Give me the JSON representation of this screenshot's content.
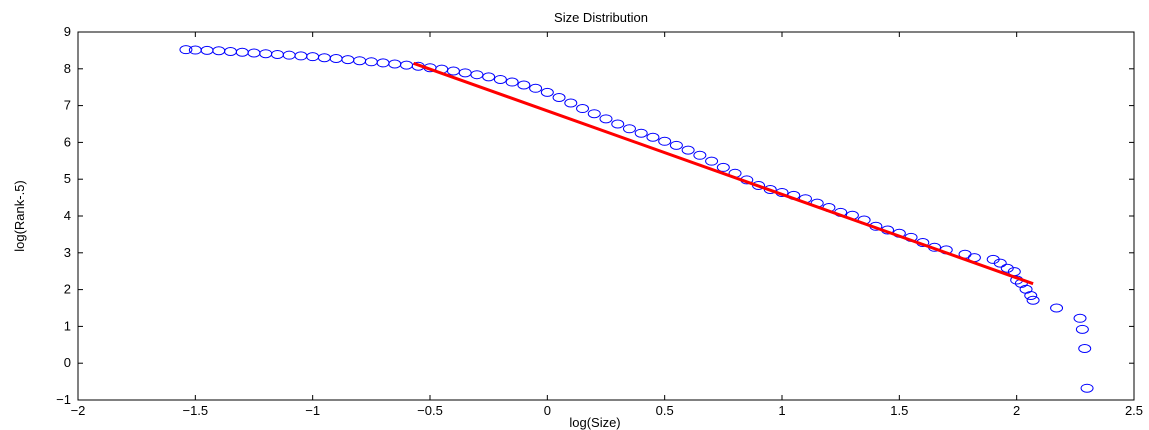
{
  "chart_data": {
    "type": "scatter",
    "title": "Size Distribution",
    "xlabel": "log(Size)",
    "ylabel": "log(Rank-.5)",
    "xlim": [
      -2,
      2.5
    ],
    "ylim": [
      -1,
      9
    ],
    "x_ticks": [
      "−2",
      "−1.5",
      "−1",
      "−0.5",
      "0",
      "0.5",
      "1",
      "1.5",
      "2",
      "2.5"
    ],
    "y_ticks": [
      "−1",
      "0",
      "1",
      "2",
      "3",
      "4",
      "5",
      "6",
      "7",
      "8",
      "9"
    ],
    "grid": false,
    "legend": "none",
    "series": [
      {
        "kind": "scatter",
        "marker": "circle-open",
        "color": "#0000ff",
        "points": [
          [
            -1.54,
            8.52
          ],
          [
            -1.5,
            8.51
          ],
          [
            -1.45,
            8.5
          ],
          [
            -1.4,
            8.49
          ],
          [
            -1.35,
            8.47
          ],
          [
            -1.3,
            8.45
          ],
          [
            -1.25,
            8.43
          ],
          [
            -1.2,
            8.41
          ],
          [
            -1.15,
            8.39
          ],
          [
            -1.1,
            8.37
          ],
          [
            -1.05,
            8.35
          ],
          [
            -1.0,
            8.33
          ],
          [
            -0.95,
            8.3
          ],
          [
            -0.9,
            8.28
          ],
          [
            -0.85,
            8.25
          ],
          [
            -0.8,
            8.22
          ],
          [
            -0.75,
            8.19
          ],
          [
            -0.7,
            8.16
          ],
          [
            -0.65,
            8.13
          ],
          [
            -0.6,
            8.1
          ],
          [
            -0.55,
            8.07
          ],
          [
            -0.5,
            8.03
          ],
          [
            -0.45,
            7.99
          ],
          [
            -0.4,
            7.94
          ],
          [
            -0.35,
            7.89
          ],
          [
            -0.3,
            7.84
          ],
          [
            -0.25,
            7.78
          ],
          [
            -0.2,
            7.71
          ],
          [
            -0.15,
            7.64
          ],
          [
            -0.1,
            7.56
          ],
          [
            -0.05,
            7.47
          ],
          [
            0.0,
            7.36
          ],
          [
            0.05,
            7.22
          ],
          [
            0.1,
            7.07
          ],
          [
            0.15,
            6.92
          ],
          [
            0.2,
            6.78
          ],
          [
            0.25,
            6.64
          ],
          [
            0.3,
            6.5
          ],
          [
            0.35,
            6.37
          ],
          [
            0.4,
            6.25
          ],
          [
            0.45,
            6.14
          ],
          [
            0.5,
            6.03
          ],
          [
            0.55,
            5.92
          ],
          [
            0.6,
            5.79
          ],
          [
            0.65,
            5.65
          ],
          [
            0.7,
            5.49
          ],
          [
            0.75,
            5.32
          ],
          [
            0.8,
            5.16
          ],
          [
            0.85,
            4.98
          ],
          [
            0.9,
            4.83
          ],
          [
            0.95,
            4.72
          ],
          [
            1.0,
            4.64
          ],
          [
            1.05,
            4.56
          ],
          [
            1.1,
            4.47
          ],
          [
            1.15,
            4.35
          ],
          [
            1.2,
            4.23
          ],
          [
            1.25,
            4.1
          ],
          [
            1.3,
            4.02
          ],
          [
            1.35,
            3.89
          ],
          [
            1.4,
            3.72
          ],
          [
            1.45,
            3.62
          ],
          [
            1.5,
            3.53
          ],
          [
            1.55,
            3.42
          ],
          [
            1.6,
            3.28
          ],
          [
            1.65,
            3.15
          ],
          [
            1.7,
            3.08
          ],
          [
            1.78,
            2.96
          ],
          [
            1.82,
            2.87
          ],
          [
            1.9,
            2.82
          ],
          [
            1.93,
            2.72
          ],
          [
            1.96,
            2.58
          ],
          [
            1.99,
            2.49
          ],
          [
            2.0,
            2.26
          ],
          [
            2.02,
            2.17
          ],
          [
            2.04,
            2.01
          ],
          [
            2.06,
            1.84
          ],
          [
            2.07,
            1.71
          ],
          [
            2.17,
            1.5
          ],
          [
            2.27,
            1.22
          ],
          [
            2.28,
            0.92
          ],
          [
            2.29,
            0.4
          ],
          [
            2.3,
            -0.68
          ]
        ]
      },
      {
        "kind": "line",
        "color": "#ff0000",
        "points": [
          [
            -0.57,
            8.15
          ],
          [
            2.07,
            2.16
          ]
        ]
      }
    ]
  }
}
